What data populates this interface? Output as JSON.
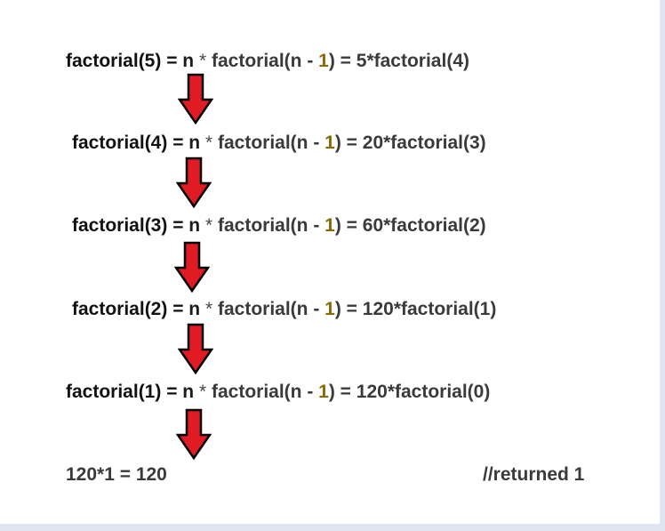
{
  "lines": [
    {
      "call": "factorial(5)",
      "eq": " = ",
      "n": "n",
      "op": " * ",
      "fn": "factorial(n - ",
      "one": "1",
      "close": ")",
      "result": " = 5*factorial(4)"
    },
    {
      "call": "factorial(4)",
      "eq": " = ",
      "n": "n",
      "op": " * ",
      "fn": "factorial(n - ",
      "one": "1",
      "close": ")",
      "result": " = 20*factorial(3)"
    },
    {
      "call": "factorial(3)",
      "eq": " = ",
      "n": "n",
      "op": " * ",
      "fn": "factorial(n - ",
      "one": "1",
      "close": ")",
      "result": " = 60*factorial(2)"
    },
    {
      "call": "factorial(2)",
      "eq": " = ",
      "n": "n",
      "op": " * ",
      "fn": "factorial(n - ",
      "one": "1",
      "close": ")",
      "result": " = 120*factorial(1)"
    },
    {
      "call": "factorial(1)",
      "eq": " = ",
      "n": "n",
      "op": " * ",
      "fn": "factorial(n - ",
      "one": "1",
      "close": ")",
      "result": " = 120*factorial(0)"
    }
  ],
  "final": {
    "expression": "120*1 = 120",
    "comment": "//returned 1"
  },
  "colors": {
    "arrow_fill": "#e01b24",
    "arrow_stroke": "#000000",
    "number_one": "#8a6a00"
  },
  "icons": {
    "arrow": "down-arrow-icon"
  }
}
